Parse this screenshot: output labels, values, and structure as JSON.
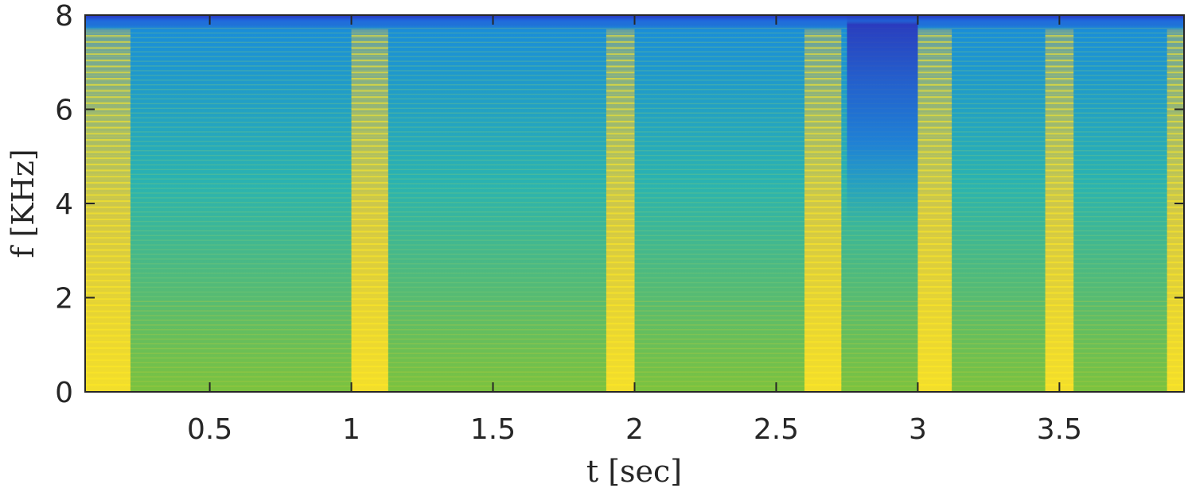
{
  "chart_data": {
    "type": "heatmap",
    "title": "",
    "xlabel": "t [sec]",
    "ylabel": "f [KHz]",
    "xlim": [
      0.06,
      3.94
    ],
    "ylim": [
      0,
      8
    ],
    "x_ticks": [
      0.5,
      1,
      1.5,
      2,
      2.5,
      3,
      3.5
    ],
    "x_tick_labels": [
      "0.5",
      "1",
      "1.5",
      "2",
      "2.5",
      "3",
      "3.5"
    ],
    "y_ticks": [
      0,
      2,
      4,
      6,
      8
    ],
    "y_tick_labels": [
      "0",
      "2",
      "4",
      "6",
      "8"
    ],
    "colormap": "parula",
    "grid": false,
    "high_energy_segments_sec": [
      [
        0.06,
        0.22
      ],
      [
        1.0,
        1.13
      ],
      [
        1.9,
        2.0
      ],
      [
        2.6,
        2.73
      ],
      [
        3.0,
        3.12
      ],
      [
        3.45,
        3.55
      ],
      [
        3.88,
        3.94
      ]
    ],
    "low_energy_regions": [
      {
        "t": [
          2.75,
          3.0
        ],
        "f": [
          3.5,
          8.0
        ]
      },
      {
        "t": [
          0.06,
          3.94
        ],
        "f": [
          7.8,
          8.0
        ]
      }
    ]
  }
}
